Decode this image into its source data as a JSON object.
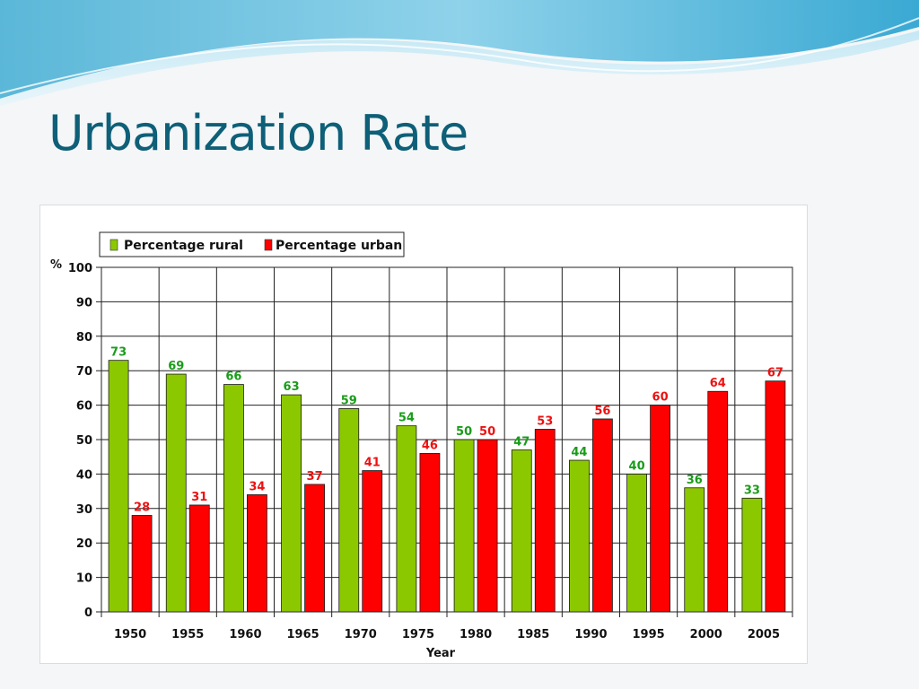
{
  "slide": {
    "title": "Urbanization Rate"
  },
  "colors": {
    "title": "#0e5f78",
    "rural_bar": "#8cc800",
    "urban_bar": "#ff0000",
    "rural_label": "#1a9c1a",
    "urban_label": "#ee1111"
  },
  "chart_data": {
    "type": "bar",
    "title": "",
    "xlabel": "Year",
    "ylabel": "%",
    "ylim": [
      0,
      100
    ],
    "yticks": [
      0,
      10,
      20,
      30,
      40,
      50,
      60,
      70,
      80,
      90,
      100
    ],
    "grid": true,
    "legend_position": "top-left",
    "categories": [
      "1950",
      "1955",
      "1960",
      "1965",
      "1970",
      "1975",
      "1980",
      "1985",
      "1990",
      "1995",
      "2000",
      "2005"
    ],
    "series": [
      {
        "name": "Percentage rural",
        "color": "#8cc800",
        "label_color": "#1a9c1a",
        "values": [
          73,
          69,
          66,
          63,
          59,
          54,
          50,
          47,
          44,
          40,
          36,
          33
        ]
      },
      {
        "name": "Percentage urban",
        "color": "#ff0000",
        "label_color": "#ee1111",
        "values": [
          28,
          31,
          34,
          37,
          41,
          46,
          50,
          53,
          56,
          60,
          64,
          67
        ]
      }
    ]
  }
}
